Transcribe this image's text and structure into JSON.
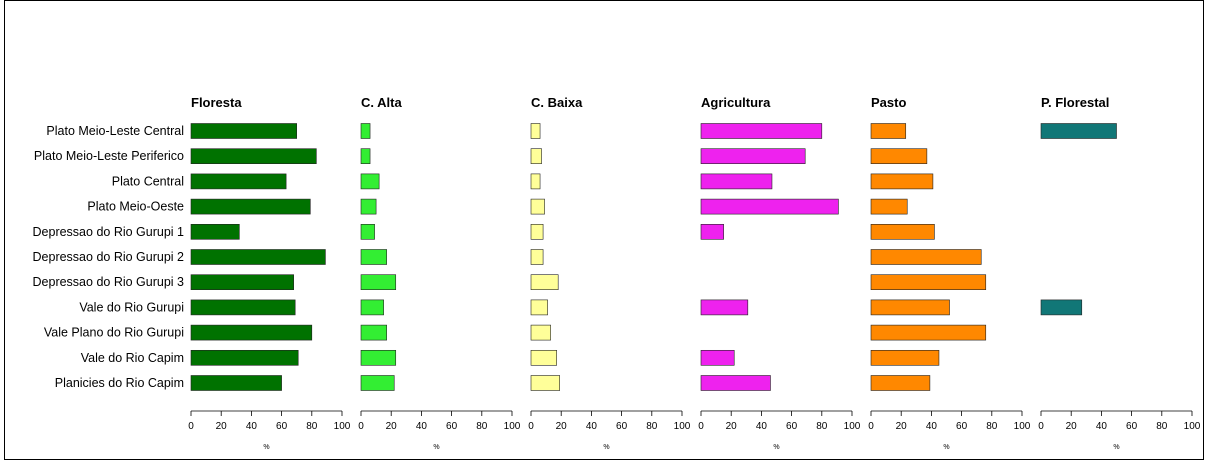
{
  "chart_data": {
    "type": "bar",
    "orientation": "horizontal",
    "categories": [
      "Plato Meio-Leste Central",
      "Plato Meio-Leste Periferico",
      "Plato Central",
      "Plato Meio-Oeste",
      "Depressao do Rio Gurupi 1",
      "Depressao do Rio Gurupi 2",
      "Depressao do Rio Gurupi 3",
      "Vale do Rio Gurupi",
      "Vale Plano do Rio Gurupi",
      "Vale do Rio Capim",
      "Planicies do Rio Capim"
    ],
    "xlim": [
      0,
      100
    ],
    "xticks": [
      "0",
      "20",
      "40",
      "60",
      "80",
      "100"
    ],
    "xlabel": "%",
    "grid": false,
    "series": [
      {
        "name": "Floresta",
        "color": "#007200",
        "values": [
          70,
          83,
          63,
          79,
          32,
          89,
          68,
          69,
          80,
          71,
          60
        ]
      },
      {
        "name": "C. Alta",
        "color": "#33ee33",
        "values": [
          6,
          6,
          12,
          10,
          9,
          17,
          23,
          15,
          17,
          23,
          22
        ]
      },
      {
        "name": "C. Baixa",
        "color": "#ffff99",
        "values": [
          6,
          7,
          6,
          9,
          8,
          8,
          18,
          11,
          13,
          17,
          19
        ]
      },
      {
        "name": "Agricultura",
        "color": "#ee22ee",
        "values": [
          80,
          69,
          47,
          91,
          15,
          null,
          null,
          31,
          null,
          22,
          46
        ]
      },
      {
        "name": "Pasto",
        "color": "#ff8800",
        "values": [
          23,
          37,
          41,
          24,
          42,
          73,
          76,
          52,
          76,
          45,
          39
        ]
      },
      {
        "name": "P. Florestal",
        "color": "#117777",
        "values": [
          50,
          null,
          null,
          null,
          null,
          null,
          null,
          27,
          null,
          null,
          null
        ]
      }
    ]
  }
}
